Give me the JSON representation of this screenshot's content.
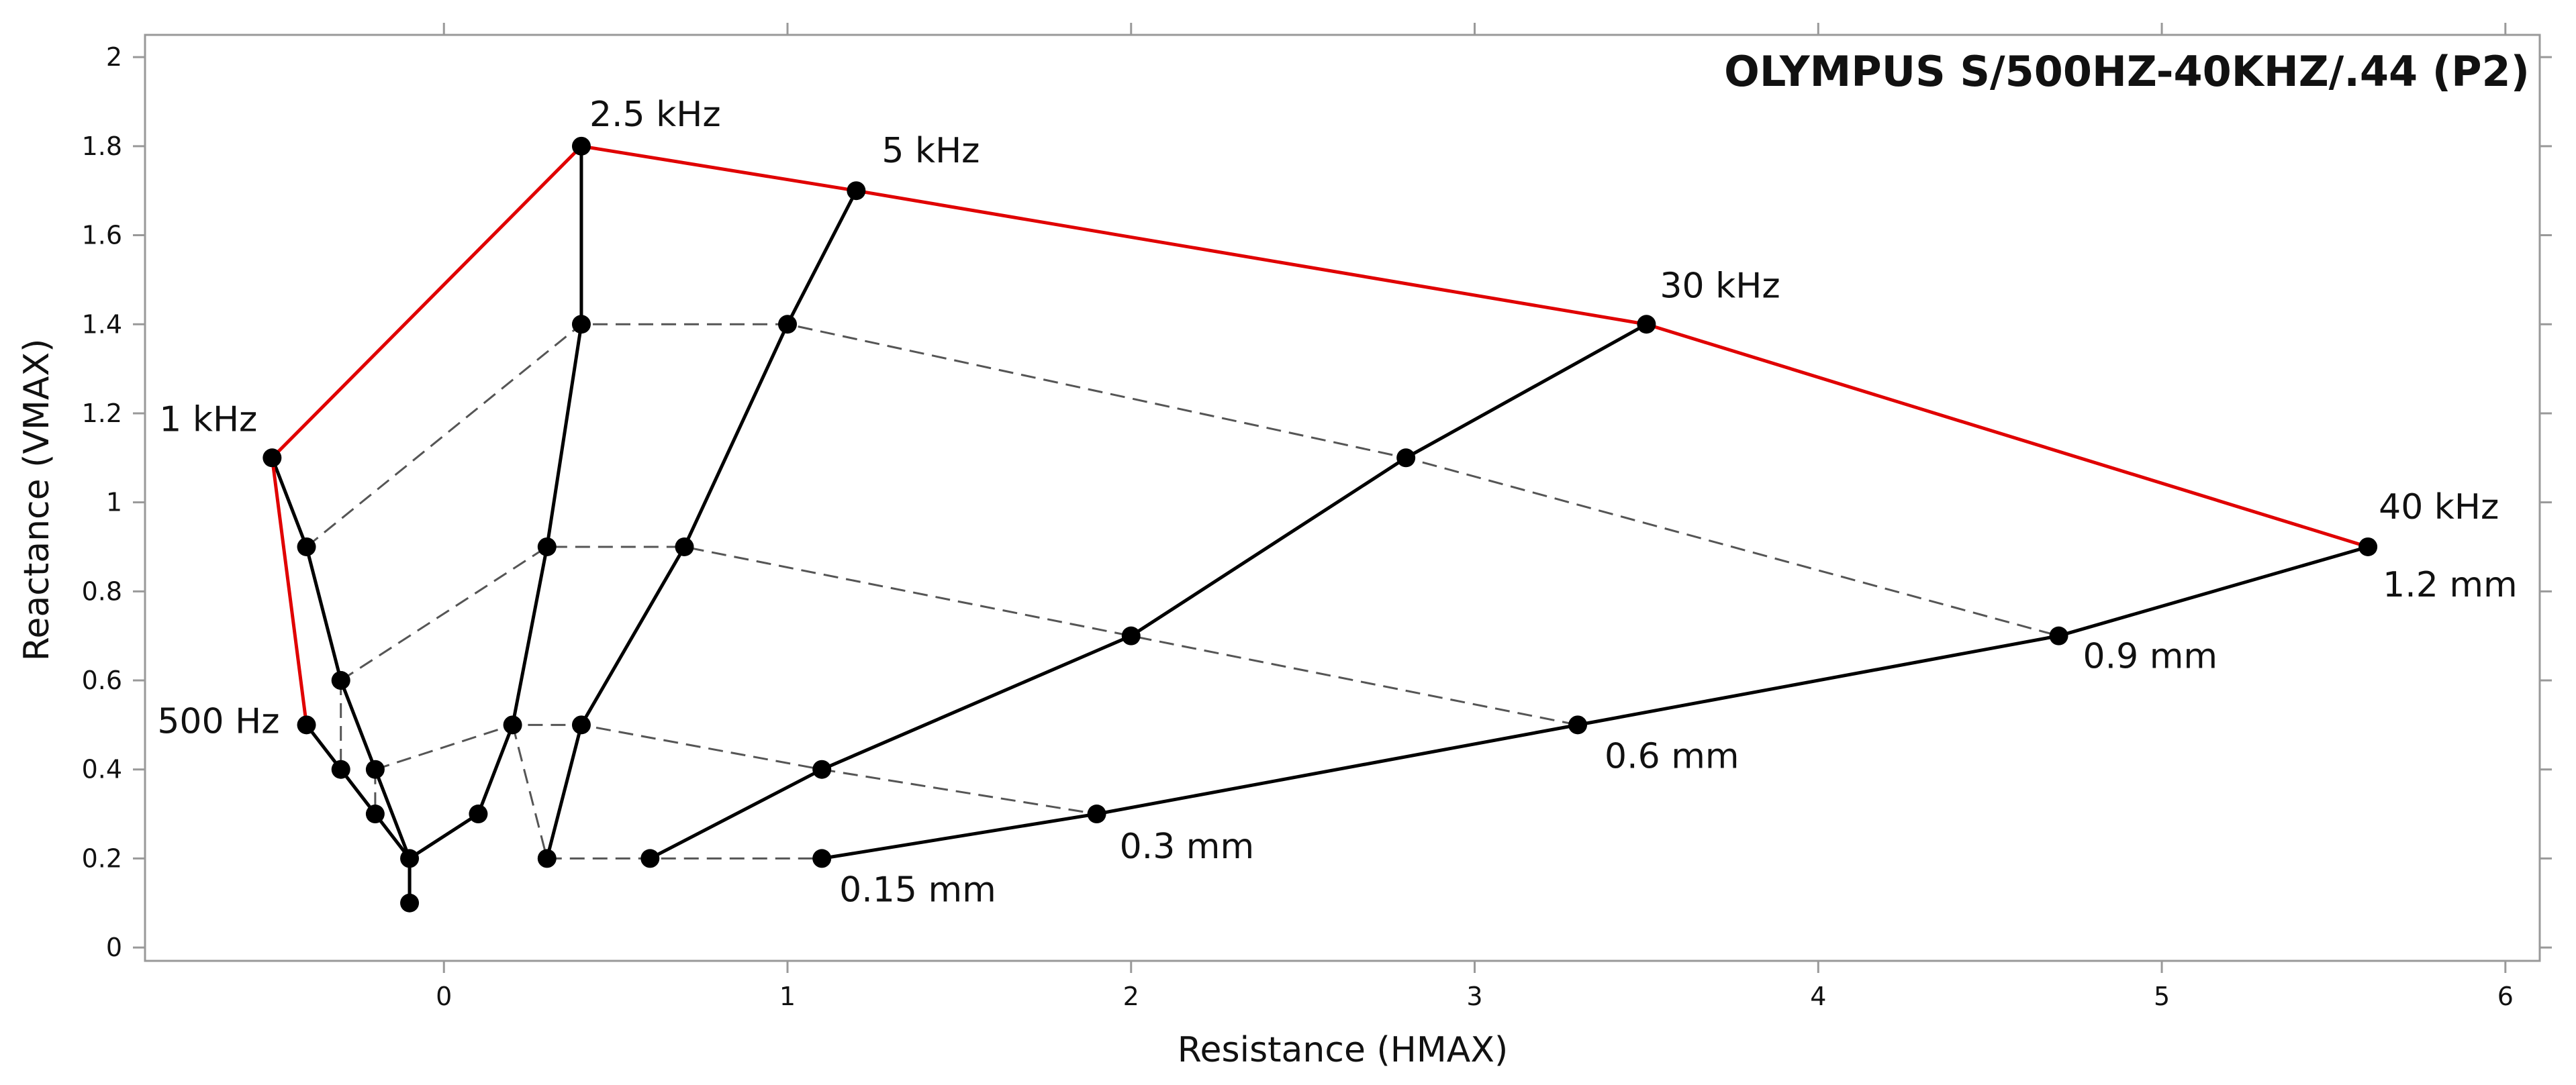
{
  "chart_data": {
    "type": "line",
    "title": "OLYMPUS S/500HZ-40KHZ/.44 (P2)",
    "xlabel": "Resistance (HMAX)",
    "ylabel": "Reactance (VMAX)",
    "xlim": [
      -0.87,
      6.1
    ],
    "ylim": [
      -0.03,
      2.05
    ],
    "xticks": [
      0,
      1,
      2,
      3,
      4,
      5,
      6
    ],
    "xtick_labels": [
      "0",
      "1",
      "2",
      "3",
      "4",
      "5",
      "6"
    ],
    "yticks": [
      0,
      0.2,
      0.4,
      0.6,
      0.8,
      1,
      1.2,
      1.4,
      1.6,
      1.8,
      2
    ],
    "ytick_labels": [
      "0",
      "0.2",
      "0.4",
      "0.6",
      "0.8",
      "1",
      "1.2",
      "1.4",
      "1.6",
      "1.8",
      "2"
    ],
    "grid": false,
    "colors": {
      "frequency_envelope": "#e00000",
      "curves": "#000000",
      "depth_lines": "#555555"
    },
    "frequency_labels": [
      {
        "text": "500 Hz",
        "x": -0.4,
        "y": 0.5
      },
      {
        "text": "1 kHz",
        "x": -0.5,
        "y": 1.1
      },
      {
        "text": "2.5 kHz",
        "x": 0.4,
        "y": 1.8
      },
      {
        "text": "5 kHz",
        "x": 1.2,
        "y": 1.7
      },
      {
        "text": "30 kHz",
        "x": 3.5,
        "y": 1.4
      },
      {
        "text": "40 kHz",
        "x": 5.6,
        "y": 0.9
      }
    ],
    "depth_labels": [
      {
        "text": "0.15 mm",
        "x": 1.1,
        "y": 0.2
      },
      {
        "text": "0.3 mm",
        "x": 1.9,
        "y": 0.3
      },
      {
        "text": "0.6 mm",
        "x": 3.3,
        "y": 0.5
      },
      {
        "text": "0.9 mm",
        "x": 4.7,
        "y": 0.7
      },
      {
        "text": "1.2 mm",
        "x": 5.6,
        "y": 0.9
      }
    ],
    "series": [
      {
        "name": "500 Hz curve",
        "style": "solid",
        "points": [
          [
            -0.4,
            0.5
          ],
          [
            -0.3,
            0.4
          ],
          [
            -0.2,
            0.3
          ],
          [
            -0.1,
            0.2
          ],
          [
            -0.1,
            0.1
          ]
        ]
      },
      {
        "name": "1 kHz curve",
        "style": "solid",
        "points": [
          [
            -0.5,
            1.1
          ],
          [
            -0.4,
            0.9
          ],
          [
            -0.3,
            0.6
          ],
          [
            -0.2,
            0.4
          ],
          [
            -0.1,
            0.2
          ],
          [
            -0.1,
            0.1
          ]
        ]
      },
      {
        "name": "2.5 kHz curve",
        "style": "solid",
        "points": [
          [
            0.4,
            1.8
          ],
          [
            0.4,
            1.4
          ],
          [
            0.3,
            0.9
          ],
          [
            0.2,
            0.5
          ],
          [
            0.1,
            0.3
          ],
          [
            -0.1,
            0.2
          ]
        ]
      },
      {
        "name": "5 kHz curve",
        "style": "solid",
        "points": [
          [
            1.2,
            1.7
          ],
          [
            1.0,
            1.4
          ],
          [
            0.7,
            0.9
          ],
          [
            0.4,
            0.5
          ],
          [
            0.3,
            0.2
          ]
        ]
      },
      {
        "name": "30 kHz curve",
        "style": "solid",
        "points": [
          [
            3.5,
            1.4
          ],
          [
            2.8,
            1.1
          ],
          [
            2.0,
            0.7
          ],
          [
            1.1,
            0.4
          ],
          [
            0.6,
            0.2
          ]
        ]
      },
      {
        "name": "40 kHz curve",
        "style": "solid",
        "points": [
          [
            5.6,
            0.9
          ],
          [
            4.7,
            0.7
          ],
          [
            3.3,
            0.5
          ],
          [
            1.9,
            0.3
          ],
          [
            1.1,
            0.2
          ]
        ]
      },
      {
        "name": "1.2 mm depth",
        "style": "dashed",
        "points": [
          [
            -0.4,
            0.9
          ],
          [
            0.4,
            1.4
          ],
          [
            1.0,
            1.4
          ],
          [
            2.8,
            1.1
          ],
          [
            4.7,
            0.7
          ]
        ]
      },
      {
        "name": "0.9 mm depth",
        "style": "dashed",
        "points": [
          [
            -0.3,
            0.6
          ],
          [
            0.3,
            0.9
          ],
          [
            0.7,
            0.9
          ],
          [
            2.0,
            0.7
          ],
          [
            3.3,
            0.5
          ]
        ]
      },
      {
        "name": "0.6 mm depth",
        "style": "dashed",
        "points": [
          [
            -0.2,
            0.4
          ],
          [
            0.2,
            0.5
          ],
          [
            0.4,
            0.5
          ],
          [
            1.1,
            0.4
          ],
          [
            1.9,
            0.3
          ]
        ]
      },
      {
        "name": "0.3 mm depth",
        "style": "dashed",
        "points": [
          [
            -0.1,
            0.2
          ],
          [
            0.1,
            0.3
          ]
        ]
      },
      {
        "name": "0.15 mm depth",
        "style": "dashed",
        "points": [
          [
            0.3,
            0.2
          ],
          [
            0.6,
            0.2
          ],
          [
            1.1,
            0.2
          ]
        ]
      },
      {
        "name": "short dashed links",
        "style": "dashed",
        "points": [
          [
            -0.3,
            0.6
          ],
          [
            -0.3,
            0.4
          ]
        ]
      },
      {
        "name": "short dashed link 2",
        "style": "dashed",
        "points": [
          [
            -0.2,
            0.4
          ],
          [
            -0.2,
            0.3
          ]
        ]
      },
      {
        "name": "short dashed link 3",
        "style": "dashed",
        "points": [
          [
            0.2,
            0.5
          ],
          [
            0.3,
            0.2
          ]
        ]
      },
      {
        "name": "frequency envelope",
        "style": "red",
        "points": [
          [
            -0.4,
            0.5
          ],
          [
            -0.5,
            1.1
          ],
          [
            0.4,
            1.8
          ],
          [
            1.2,
            1.7
          ],
          [
            3.5,
            1.4
          ],
          [
            5.6,
            0.9
          ]
        ]
      }
    ]
  }
}
